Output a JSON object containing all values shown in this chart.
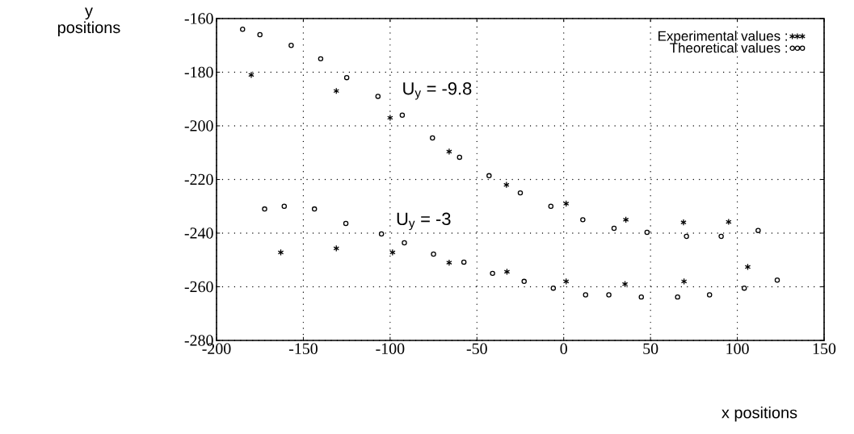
{
  "chart_data": {
    "type": "scatter",
    "xlabel": "x positions",
    "ylabel": "y positions",
    "xlim": [
      -200,
      150
    ],
    "ylim": [
      -280,
      -160
    ],
    "xticks": [
      -200,
      -150,
      -100,
      -50,
      0,
      50,
      100,
      150
    ],
    "yticks": [
      -280,
      -260,
      -240,
      -220,
      -200,
      -180,
      -160
    ],
    "grid": true,
    "legend": "top right",
    "series": [
      {
        "name": "Experimental values :",
        "color": "#000000",
        "marker": "cross",
        "x": [
          -180,
          -131,
          -100,
          -66,
          -33,
          1.4,
          35.8,
          69,
          95,
          -163,
          -131,
          -98.6,
          -66,
          -32.7,
          1.4,
          35.3,
          69.3,
          106
        ],
        "values": [
          -181,
          -187,
          -197,
          -209.6,
          -222,
          -229,
          -235,
          -236,
          -235.8,
          -247.2,
          -245.7,
          -247.2,
          -251,
          -254.4,
          -258,
          -259,
          -258,
          -252.6
        ]
      },
      {
        "name": "Theoretical values :",
        "color": "#000000",
        "marker": "circle",
        "x": [
          -185,
          -175,
          -157,
          -140,
          -125,
          -107,
          -93,
          -75.6,
          -60,
          -43,
          -25,
          -7.4,
          11,
          29,
          48,
          70.7,
          90.7,
          112,
          -172.3,
          -161,
          -143.6,
          -125.5,
          -105,
          -91.8,
          -75,
          -57.5,
          -41,
          -22.8,
          -6,
          12.6,
          26,
          44.7,
          65.6,
          84,
          104,
          123
        ],
        "values": [
          -164,
          -166,
          -170,
          -175,
          -182,
          -189,
          -196,
          -204.5,
          -211.7,
          -218.6,
          -225,
          -230,
          -235,
          -238.2,
          -239.7,
          -241.2,
          -241.2,
          -239,
          -231,
          -230,
          -231,
          -236.4,
          -240.3,
          -243.6,
          -247.8,
          -250.8,
          -255,
          -258,
          -260.5,
          -263,
          -263,
          -263.8,
          -263.8,
          -263,
          -260.5,
          -257.5
        ]
      }
    ],
    "annotations": [
      "U$_{y}$ = -9.8",
      "U$_{y}$ = -3"
    ]
  }
}
